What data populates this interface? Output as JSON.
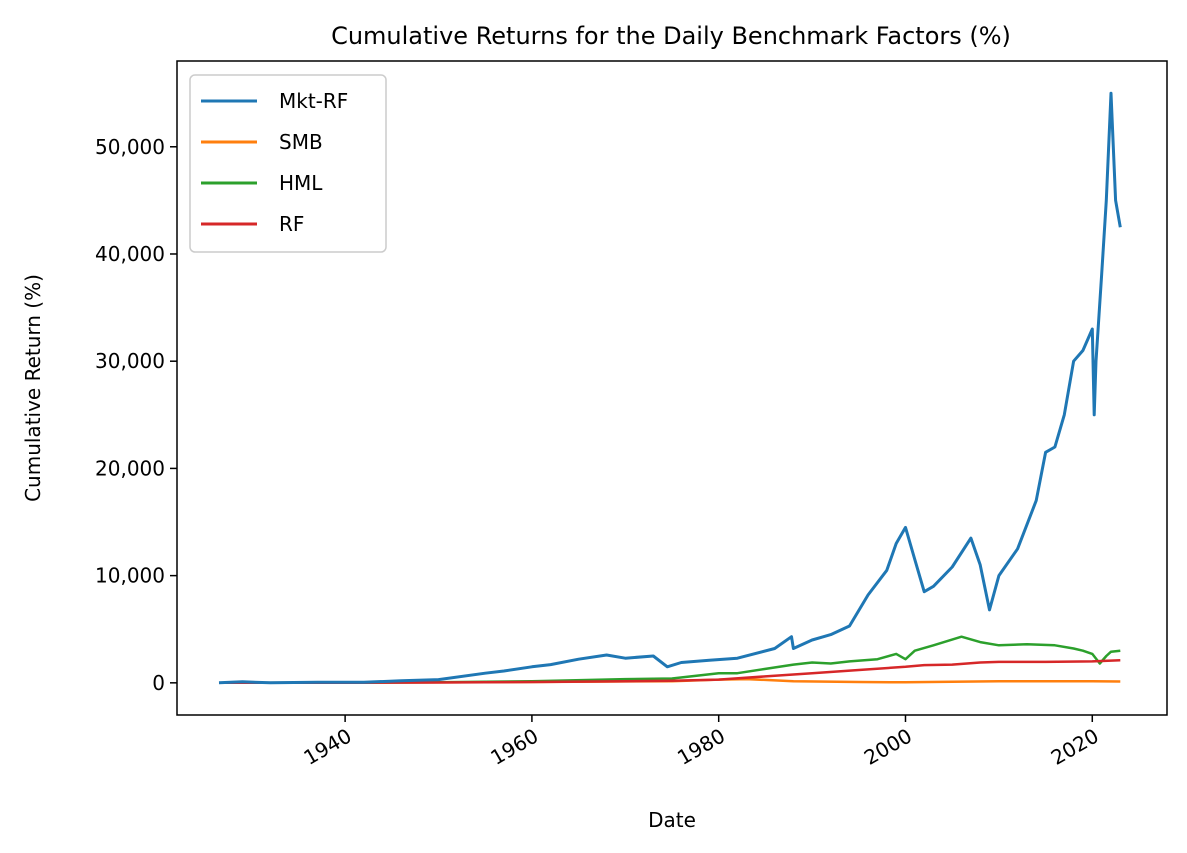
{
  "chart_data": {
    "type": "line",
    "title": "Cumulative Returns for the Daily Benchmark Factors (%)",
    "xlabel": "Date",
    "ylabel": "Cumulative Return (%)",
    "xlim": [
      1922,
      2028
    ],
    "ylim": [
      -3000,
      58000
    ],
    "x_ticks": [
      1940,
      1960,
      1980,
      2000,
      2020
    ],
    "x_tick_labels": [
      "1940",
      "1960",
      "1980",
      "2000",
      "2020"
    ],
    "y_ticks": [
      0,
      10000,
      20000,
      30000,
      40000,
      50000
    ],
    "y_tick_labels": [
      "0",
      "10,000",
      "20,000",
      "30,000",
      "40,000",
      "50,000"
    ],
    "grid": false,
    "legend_position": "top-left",
    "series": [
      {
        "name": "Mkt-RF",
        "color": "#1f77b4",
        "x": [
          1926.5,
          1929,
          1932,
          1937,
          1942,
          1946,
          1950,
          1955,
          1957,
          1960,
          1962,
          1965,
          1968,
          1970,
          1973,
          1974.5,
          1976,
          1979,
          1982,
          1986,
          1987.8,
          1988,
          1990,
          1992,
          1994,
          1996,
          1998,
          1999,
          2000,
          2001,
          2002,
          2003,
          2005,
          2007,
          2008,
          2009,
          2010,
          2012,
          2014,
          2015,
          2016,
          2017,
          2018,
          2019,
          2020,
          2020.2,
          2020.4,
          2021,
          2021.5,
          2022,
          2022.5,
          2023
        ],
        "y": [
          0,
          100,
          0,
          50,
          50,
          200,
          300,
          900,
          1100,
          1500,
          1700,
          2200,
          2600,
          2300,
          2500,
          1500,
          1900,
          2100,
          2300,
          3200,
          4300,
          3200,
          4000,
          4500,
          5300,
          8200,
          10500,
          13000,
          14500,
          11500,
          8500,
          9000,
          10800,
          13500,
          11000,
          6800,
          10000,
          12500,
          17000,
          21500,
          22000,
          25000,
          30000,
          31000,
          33000,
          25000,
          30000,
          38000,
          45000,
          55000,
          45000,
          42500
        ]
      },
      {
        "name": "SMB",
        "color": "#ff7f0e",
        "x": [
          1926.5,
          1940,
          1960,
          1975,
          1980,
          1983,
          1988,
          1995,
          2000,
          2010,
          2020,
          2023
        ],
        "y": [
          0,
          20,
          80,
          150,
          300,
          350,
          150,
          80,
          50,
          150,
          150,
          120
        ]
      },
      {
        "name": "HML",
        "color": "#2ca02c",
        "x": [
          1926.5,
          1940,
          1950,
          1960,
          1970,
          1975,
          1980,
          1982,
          1985,
          1988,
          1990,
          1992,
          1994,
          1997,
          1999,
          2000,
          2001,
          2003,
          2006,
          2008,
          2010,
          2013,
          2016,
          2018,
          2019,
          2020,
          2020.8,
          2021.5,
          2022,
          2023
        ],
        "y": [
          0,
          20,
          50,
          150,
          350,
          400,
          900,
          900,
          1300,
          1700,
          1900,
          1800,
          2000,
          2200,
          2700,
          2200,
          3000,
          3500,
          4300,
          3800,
          3500,
          3600,
          3500,
          3200,
          3000,
          2700,
          1800,
          2500,
          2900,
          3000
        ]
      },
      {
        "name": "RF",
        "color": "#d62728",
        "x": [
          1926.5,
          1940,
          1950,
          1960,
          1970,
          1975,
          1980,
          1985,
          1990,
          1995,
          2000,
          2002,
          2005,
          2008,
          2010,
          2015,
          2020,
          2023
        ],
        "y": [
          0,
          10,
          30,
          80,
          150,
          200,
          300,
          600,
          900,
          1200,
          1500,
          1650,
          1700,
          1900,
          1950,
          1950,
          2000,
          2100
        ]
      }
    ]
  }
}
